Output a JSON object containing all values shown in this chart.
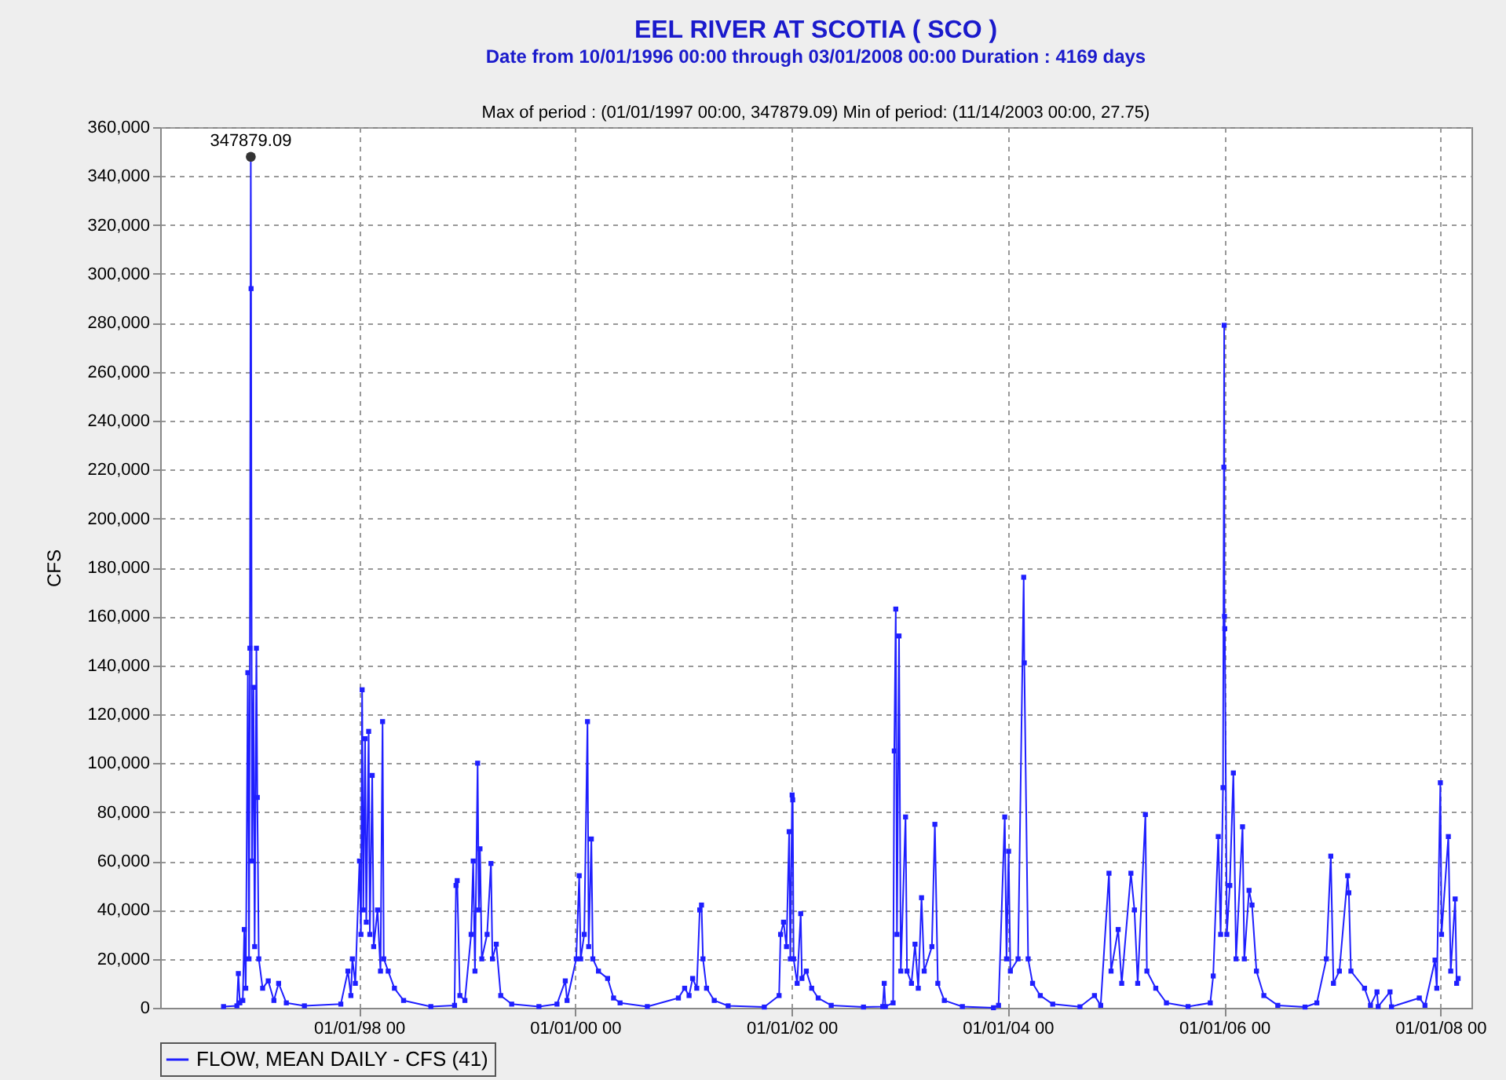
{
  "chart_data": {
    "type": "line",
    "title": "EEL RIVER AT SCOTIA ( SCO )",
    "subtitle": "Date from 10/01/1996 00:00 through 03/01/2008 00:00 Duration : 4169 days",
    "ylabel": "CFS",
    "annotations": [
      "Max of period : (01/01/1997 00:00, 347879.09)  Min of period: (11/14/2003 00:00,  27.75)",
      {
        "text": "347879.09",
        "x": "1997-01-01",
        "y": 347879.09
      }
    ],
    "x": [
      "1996-10-01",
      "1996-11-15",
      "1996-11-20",
      "1996-11-25",
      "1996-12-05",
      "1996-12-10",
      "1996-12-15",
      "1996-12-22",
      "1996-12-26",
      "1996-12-29",
      "1997-01-01",
      "1997-01-02",
      "1997-01-05",
      "1997-01-10",
      "1997-01-14",
      "1997-01-20",
      "1997-01-23",
      "1997-01-28",
      "1997-02-10",
      "1997-03-01",
      "1997-03-20",
      "1997-04-05",
      "1997-05-01",
      "1997-07-01",
      "1997-11-01",
      "1997-11-25",
      "1997-12-05",
      "1997-12-10",
      "1997-12-20",
      "1998-01-03",
      "1998-01-08",
      "1998-01-12",
      "1998-01-16",
      "1998-01-22",
      "1998-01-26",
      "1998-02-03",
      "1998-02-07",
      "1998-02-15",
      "1998-02-20",
      "1998-03-05",
      "1998-03-15",
      "1998-03-22",
      "1998-03-26",
      "1998-04-10",
      "1998-05-01",
      "1998-06-01",
      "1998-09-01",
      "1998-11-20",
      "1998-11-25",
      "1998-11-29",
      "1998-12-08",
      "1998-12-25",
      "1999-01-15",
      "1999-01-22",
      "1999-01-28",
      "1999-02-06",
      "1999-02-10",
      "1999-02-14",
      "1999-02-20",
      "1999-03-10",
      "1999-03-23",
      "1999-03-28",
      "1999-04-10",
      "1999-04-25",
      "1999-06-01",
      "1999-09-01",
      "1999-11-01",
      "1999-11-29",
      "1999-12-05",
      "2000-01-05",
      "2000-01-15",
      "2000-01-20",
      "2000-02-01",
      "2000-02-12",
      "2000-02-16",
      "2000-02-25",
      "2000-03-01",
      "2000-03-20",
      "2000-04-20",
      "2000-05-10",
      "2000-06-01",
      "2000-09-01",
      "2000-12-15",
      "2001-01-05",
      "2001-01-20",
      "2001-02-01",
      "2001-02-15",
      "2001-02-25",
      "2001-03-03",
      "2001-03-08",
      "2001-03-20",
      "2001-04-15",
      "2001-06-01",
      "2001-10-01",
      "2001-11-20",
      "2001-11-25",
      "2001-12-05",
      "2001-12-15",
      "2001-12-24",
      "2001-12-28",
      "2002-01-03",
      "2002-01-05",
      "2002-01-08",
      "2002-01-20",
      "2002-02-01",
      "2002-02-05",
      "2002-02-20",
      "2002-03-10",
      "2002-04-01",
      "2002-05-15",
      "2002-09-01",
      "2002-11-05",
      "2002-11-10",
      "2002-11-14",
      "2002-12-10",
      "2002-12-14",
      "2002-12-19",
      "2002-12-23",
      "2002-12-30",
      "2003-01-05",
      "2003-01-21",
      "2003-01-26",
      "2003-02-10",
      "2003-02-22",
      "2003-03-05",
      "2003-03-16",
      "2003-03-25",
      "2003-04-20",
      "2003-04-30",
      "2003-05-10",
      "2003-06-01",
      "2003-08-01",
      "2003-11-14",
      "2003-12-01",
      "2003-12-22",
      "2003-12-28",
      "2004-01-04",
      "2004-01-10",
      "2004-02-05",
      "2004-02-24",
      "2004-02-26",
      "2004-03-10",
      "2004-03-25",
      "2004-04-20",
      "2004-06-01",
      "2004-09-01",
      "2004-10-20",
      "2004-11-10",
      "2004-12-08",
      "2004-12-15",
      "2005-01-08",
      "2005-01-20",
      "2005-02-20",
      "2005-03-04",
      "2005-03-15",
      "2005-04-10",
      "2005-04-15",
      "2005-05-15",
      "2005-06-20",
      "2005-09-01",
      "2005-11-15",
      "2005-11-25",
      "2005-12-12",
      "2005-12-20",
      "2005-12-28",
      "2005-12-31",
      "2006-01-01",
      "2006-01-02",
      "2006-01-03",
      "2006-01-10",
      "2006-01-20",
      "2006-02-01",
      "2006-02-10",
      "2006-03-04",
      "2006-03-10",
      "2006-03-26",
      "2006-04-05",
      "2006-04-20",
      "2006-05-15",
      "2006-07-01",
      "2006-10-01",
      "2006-11-10",
      "2006-12-12",
      "2006-12-27",
      "2007-01-05",
      "2007-01-25",
      "2007-02-22",
      "2007-02-26",
      "2007-03-05",
      "2007-04-20",
      "2007-05-10",
      "2007-06-01",
      "2007-06-05",
      "2007-07-15",
      "2007-07-20",
      "2007-10-22",
      "2007-11-10",
      "2007-12-14",
      "2007-12-20",
      "2008-01-01",
      "2008-01-05",
      "2008-01-28",
      "2008-02-05",
      "2008-02-20",
      "2008-02-25",
      "2008-03-01"
    ],
    "series": [
      {
        "name": "FLOW, MEAN DAILY - CFS (41)",
        "color": "#1f1fff",
        "values": [
          500,
          800,
          14000,
          2000,
          3000,
          32000,
          8000,
          137000,
          20000,
          147000,
          347879.09,
          294000,
          60000,
          131000,
          25000,
          147000,
          86000,
          20000,
          8000,
          11000,
          3000,
          10000,
          2000,
          800,
          1500,
          15000,
          5000,
          20000,
          10000,
          60000,
          30000,
          130000,
          40000,
          110000,
          35000,
          113000,
          30000,
          95000,
          25000,
          40000,
          15000,
          117000,
          20000,
          15000,
          8000,
          3000,
          500,
          1000,
          50000,
          52000,
          5000,
          3000,
          30000,
          60000,
          15000,
          100000,
          40000,
          65000,
          20000,
          30000,
          59000,
          20000,
          26000,
          5000,
          1500,
          500,
          1500,
          11000,
          3000,
          20000,
          54000,
          20000,
          30000,
          117000,
          25000,
          69000,
          20000,
          15000,
          12000,
          4000,
          2000,
          500,
          4000,
          8000,
          5000,
          12000,
          8000,
          40000,
          42000,
          20000,
          8000,
          3000,
          800,
          300,
          5000,
          30000,
          35000,
          25000,
          72000,
          20000,
          87000,
          85000,
          20000,
          10000,
          38500,
          12000,
          15000,
          8000,
          4000,
          1000,
          300,
          500,
          10000,
          500,
          2000,
          105000,
          163000,
          30000,
          152000,
          15000,
          78000,
          15000,
          10000,
          26000,
          8000,
          45000,
          15000,
          25000,
          75000,
          10000,
          3000,
          500,
          27.75,
          1000,
          78000,
          20000,
          64000,
          15000,
          20000,
          176000,
          141000,
          20000,
          10000,
          5000,
          1500,
          400,
          5000,
          1000,
          55000,
          15000,
          32000,
          10000,
          55000,
          40000,
          10000,
          79000,
          15000,
          8000,
          2000,
          500,
          2000,
          13000,
          70000,
          30000,
          90000,
          221000,
          279000,
          160000,
          155000,
          30000,
          50000,
          96000,
          20000,
          74000,
          20000,
          48000,
          42000,
          15000,
          5000,
          1000,
          300,
          2000,
          20000,
          62000,
          10000,
          15000,
          54000,
          47000,
          15000,
          8000,
          1000,
          6500,
          500,
          6500,
          400,
          4000,
          1000,
          19500,
          8000,
          92000,
          30000,
          70000,
          15000,
          44500,
          10000,
          12000
        ]
      }
    ],
    "xlim": [
      "1996-03-01",
      "2008-04-15"
    ],
    "xticks": [
      {
        "value": "1998-01-01",
        "label": "01/01/98 00"
      },
      {
        "value": "2000-01-01",
        "label": "01/01/00 00"
      },
      {
        "value": "2002-01-01",
        "label": "01/01/02 00"
      },
      {
        "value": "2004-01-01",
        "label": "01/01/04 00"
      },
      {
        "value": "2006-01-01",
        "label": "01/01/06 00"
      },
      {
        "value": "2008-01-01",
        "label": "01/01/08 00"
      }
    ],
    "ylim": [
      0,
      360000
    ],
    "yticks": [
      0,
      {
        "value": 20000,
        "label": "20,000"
      },
      {
        "value": 40000,
        "label": "40,000"
      },
      {
        "value": 60000,
        "label": "60,000"
      },
      {
        "value": 80000,
        "label": "80,000"
      },
      {
        "value": 100000,
        "label": "100,000"
      },
      {
        "value": 120000,
        "label": "120,000"
      },
      {
        "value": 140000,
        "label": "140,000"
      },
      {
        "value": 160000,
        "label": "160,000"
      },
      {
        "value": 180000,
        "label": "180,000"
      },
      {
        "value": 200000,
        "label": "200,000"
      },
      {
        "value": 220000,
        "label": "220,000"
      },
      {
        "value": 240000,
        "label": "240,000"
      },
      {
        "value": 260000,
        "label": "260,000"
      },
      {
        "value": 280000,
        "label": "280,000"
      },
      {
        "value": 300000,
        "label": "300,000"
      },
      {
        "value": 320000,
        "label": "320,000"
      },
      {
        "value": 340000,
        "label": "340,000"
      },
      {
        "value": 360000,
        "label": "360,000"
      }
    ],
    "grid": true,
    "legend": "bottom",
    "marker": "square",
    "line_style": "solid"
  }
}
